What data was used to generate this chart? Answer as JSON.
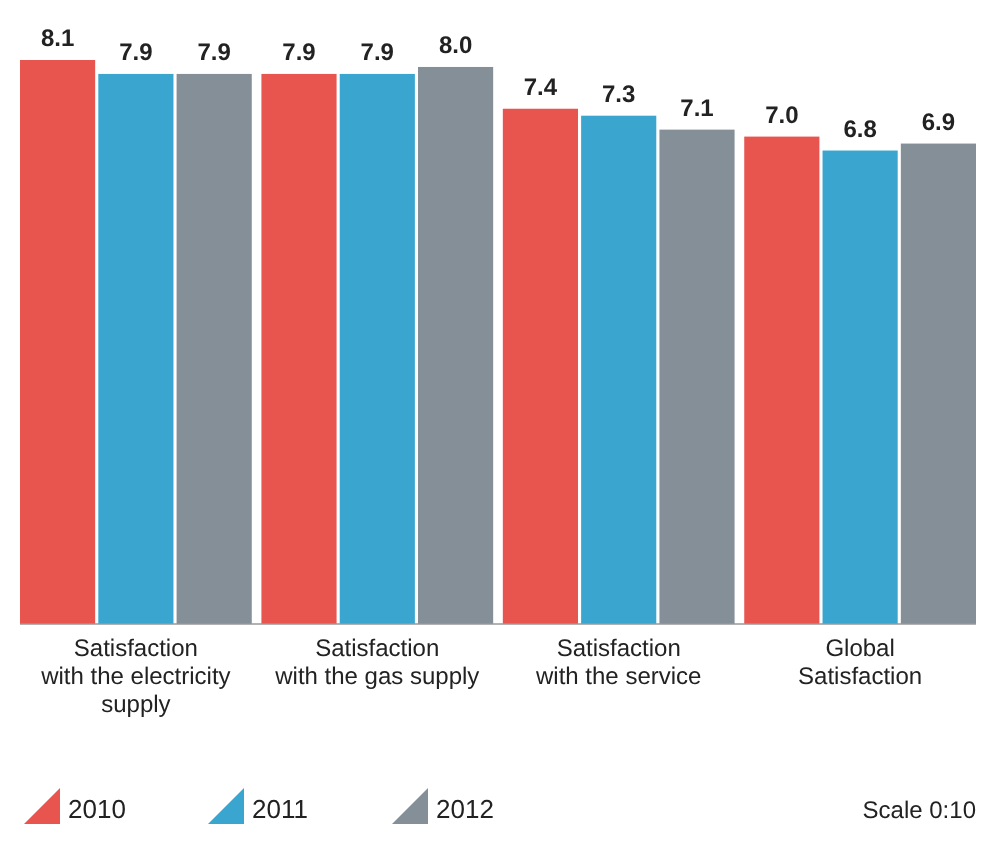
{
  "chart_data": {
    "type": "bar",
    "categories": [
      "Satisfaction with the electricity supply",
      "Satisfaction with the gas supply",
      "Satisfaction with the service",
      "Global Satisfaction"
    ],
    "series": [
      {
        "name": "2010",
        "color": "#e8554e",
        "values": [
          8.1,
          7.9,
          7.4,
          7.0
        ],
        "value_labels": [
          "8.1",
          "7.9",
          "7.4",
          "7.0"
        ]
      },
      {
        "name": "2011",
        "color": "#3aa6d0",
        "values": [
          7.9,
          7.9,
          7.3,
          6.8
        ],
        "value_labels": [
          "7.9",
          "7.9",
          "7.3",
          "6.8"
        ]
      },
      {
        "name": "2012",
        "color": "#858f97",
        "values": [
          7.9,
          8.0,
          7.1,
          6.9
        ],
        "value_labels": [
          "7.9",
          "8.0",
          "7.1",
          "6.9"
        ]
      }
    ],
    "tick_labels": "x",
    "legend": "bottom left",
    "annotations": [
      "Scale 0:10"
    ]
  }
}
